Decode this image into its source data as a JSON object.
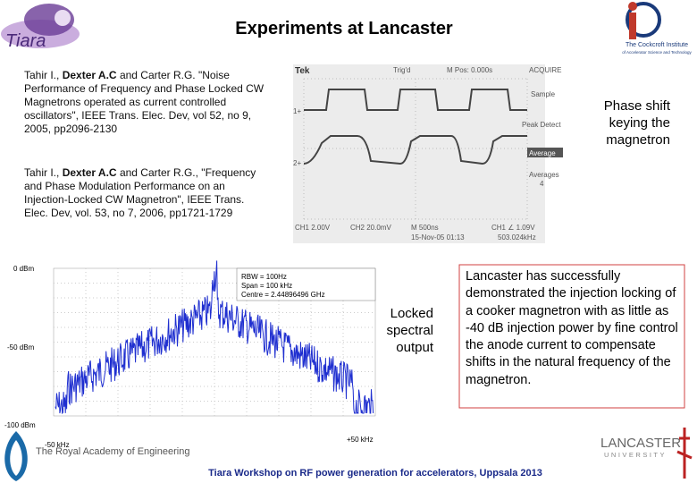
{
  "header": {
    "title": "Experiments at Lancaster",
    "left_logo": "Tiara",
    "right_logo_name": "The Cockcroft Institute",
    "right_logo_sub": "of Accelerator Science and Technology"
  },
  "references": [
    {
      "authors_before": "Tahir I., ",
      "authors_bold": "Dexter A.C",
      "rest": " and Carter R.G. \"Noise Performance of Frequency and Phase Locked CW Magnetrons operated as current controlled oscillators\", IEEE Trans. Elec. Dev, vol 52, no 9, 2005, pp2096-2130"
    },
    {
      "authors_before": "Tahir I., ",
      "authors_bold": "Dexter A.C",
      "rest": " and Carter R.G., \"Frequency and Phase Modulation Performance on an Injection-Locked CW Magnetron\", IEEE Trans. Elec. Dev, vol. 53, no 7, 2006, pp1721-1729"
    }
  ],
  "oscilloscope": {
    "brand": "Tek",
    "trigger": "Trig'd",
    "position": "M Pos: 0.000s",
    "menu_title": "ACQUIRE",
    "menu_items": [
      "Sample",
      "Peak Detect",
      "Average",
      "Averages"
    ],
    "averages_value": "4",
    "ch1_marker": "1+",
    "ch2_marker": "2+",
    "ch1_scale": "CH1  2.00V",
    "ch2_scale": "CH2  20.0mV",
    "time_scale": "M 500ns",
    "trigger_level": "CH1  ∠  1.09V",
    "date": "15-Nov-05 01:13",
    "frequency": "503.024kHz"
  },
  "oscilloscope_caption": "Phase shift keying the magnetron",
  "spectrum": {
    "settings": [
      "RBW = 100Hz",
      "Span = 100 kHz",
      "Centre = 2.44896496 GHz"
    ],
    "y_labels": [
      "0 dBm",
      "-50 dBm",
      "-100 dBm"
    ],
    "x_labels": [
      "-50 kHz",
      "+50 kHz"
    ]
  },
  "spectrum_caption": "Locked spectral output",
  "summary": "Lancaster has successfully demonstrated the injection locking of a cooker magnetron with as little as -40 dB injection power by fine control the anode current to compensate shifts in the natural frequency of the magnetron.",
  "footer": {
    "text": "Tiara Workshop on RF power generation for accelerators, Uppsala  2013",
    "lancaster_name": "LANCASTER",
    "lancaster_sub": "UNIVERSITY",
    "royal_academy": "The Royal Academy of Engineering"
  }
}
